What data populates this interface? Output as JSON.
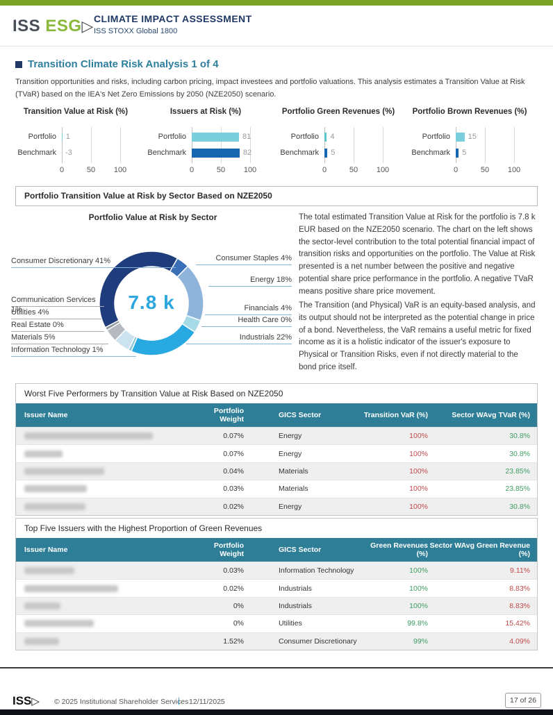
{
  "brand": {
    "topbar_color": "#7ba428",
    "bottombar_color": "#101018",
    "logo_iss": "ISS",
    "logo_esg": "ESG",
    "logo_arrow": "▷",
    "title": "CLIMATE IMPACT ASSESSMENT",
    "subtitle": "ISS STOXX Global 1800"
  },
  "section": {
    "title": "Transition Climate Risk Analysis 1 of 4",
    "intro": "Transition opportunities and risks, including carbon pricing, impact investees and portfolio valuations. This analysis estimates a Transition Value at Risk (TVaR) based on the IEA's Net Zero Emissions by 2050 (NZE2050) scenario."
  },
  "chart_data": [
    {
      "type": "bar",
      "title": "Transition Value at Risk (%)",
      "categories": [
        "Portfolio",
        "Benchmark"
      ],
      "values": [
        1,
        -3
      ],
      "colors": [
        "#7bcedc",
        "#1565af"
      ],
      "xlim": [
        0,
        100
      ],
      "ticks": [
        0,
        50,
        100
      ]
    },
    {
      "type": "bar",
      "title": "Issuers at Risk (%)",
      "categories": [
        "Portfolio",
        "Benchmark"
      ],
      "values": [
        81,
        82
      ],
      "colors": [
        "#7bcedc",
        "#1565af"
      ],
      "xlim": [
        0,
        100
      ],
      "ticks": [
        0,
        50,
        100
      ]
    },
    {
      "type": "bar",
      "title": "Portfolio Green Revenues (%)",
      "categories": [
        "Portfolio",
        "Benchmark"
      ],
      "values": [
        4,
        5
      ],
      "colors": [
        "#5fc4c8",
        "#1565af"
      ],
      "xlim": [
        0,
        100
      ],
      "ticks": [
        0,
        50,
        100
      ]
    },
    {
      "type": "bar",
      "title": "Portfolio Brown Revenues (%)",
      "categories": [
        "Portfolio",
        "Benchmark"
      ],
      "values": [
        15,
        5
      ],
      "colors": [
        "#7bcedc",
        "#1565af"
      ],
      "xlim": [
        0,
        100
      ],
      "ticks": [
        0,
        50,
        100
      ]
    },
    {
      "type": "donut",
      "title": "Portfolio Value at Risk by Sector",
      "center_label": "7.8 k",
      "start_angle": 30,
      "segments": [
        {
          "label": "Consumer Staples",
          "value": 4,
          "color": "#3a70b7"
        },
        {
          "label": "Energy",
          "value": 18,
          "color": "#8fb4dc"
        },
        {
          "label": "Financials",
          "value": 4,
          "color": "#a6dae7"
        },
        {
          "label": "Health Care",
          "value": 0,
          "color": "#a6dae7"
        },
        {
          "label": "Industrials",
          "value": 22,
          "color": "#29a9e1"
        },
        {
          "label": "Information Technology",
          "value": 1,
          "color": "#8fcadc"
        },
        {
          "label": "Materials",
          "value": 5,
          "color": "#cbe3ef"
        },
        {
          "label": "Real Estate",
          "value": 0,
          "color": "#b4bac0"
        },
        {
          "label": "Utilities",
          "value": 4,
          "color": "#b4bac0"
        },
        {
          "label": "Communication Services",
          "value": 1,
          "color": "#8f969d"
        },
        {
          "label": "Consumer Discretionary",
          "value": 41,
          "color": "#1f3d7c"
        }
      ]
    }
  ],
  "sector_section": {
    "box_title": "Portfolio Transition Value at Risk by Sector Based on NZE2050",
    "paragraph1": "The total estimated Transition Value at Risk for the portfolio is 7.8 k EUR based on the NZE2050 scenario. The chart on the left shows the sector-level contribution to the total potential financial impact of transition risks and opportunities on the portfolio. The Value at Risk presented is a net number between the positive and negative potential share price performance in the portfolio. A negative TVaR means positive share price movement.",
    "paragraph2": "The Transition (and Physical) VaR is an equity-based analysis, and its output should not be interpreted as the potential change in price of a bond. Nevertheless, the VaR remains a useful metric for fixed income as it is a holistic indicator of the issuer's exposure to Physical or Transition Risks, even if not directly material to the bond price itself."
  },
  "tables": [
    {
      "title": "Worst Five Performers by Transition Value at Risk Based on NZE2050",
      "header_bg": "#2e7e97",
      "headers": [
        "Issuer Name",
        "Portfolio Weight",
        "GICS Sector",
        "Transition VaR (%)",
        "Sector WAvg TVaR (%)"
      ],
      "column_colors": [
        null,
        null,
        null,
        "#c14a4a",
        "#3e9e63"
      ],
      "rows": [
        {
          "issuer_blur_width": 185,
          "cells": [
            "0.07%",
            "Energy",
            "100%",
            "30.8%"
          ]
        },
        {
          "issuer_blur_width": 55,
          "cells": [
            "0.07%",
            "Energy",
            "100%",
            "30.8%"
          ]
        },
        {
          "issuer_blur_width": 115,
          "cells": [
            "0.04%",
            "Materials",
            "100%",
            "23.85%"
          ]
        },
        {
          "issuer_blur_width": 90,
          "cells": [
            "0.03%",
            "Materials",
            "100%",
            "23.85%"
          ]
        },
        {
          "issuer_blur_width": 88,
          "cells": [
            "0.02%",
            "Energy",
            "100%",
            "30.8%"
          ]
        }
      ]
    },
    {
      "title": "Top Five Issuers with the Highest Proportion of Green Revenues",
      "header_bg": "#2e7e97",
      "headers": [
        "Issuer Name",
        "Portfolio Weight",
        "GICS Sector",
        "Green Revenues (%)",
        "Sector WAvg Green Revenue (%)"
      ],
      "column_colors": [
        null,
        null,
        null,
        "#3e9e63",
        "#c14a4a"
      ],
      "rows": [
        {
          "issuer_blur_width": 72,
          "cells": [
            "0.03%",
            "Information Technology",
            "100%",
            "9.11%"
          ]
        },
        {
          "issuer_blur_width": 135,
          "cells": [
            "0.02%",
            "Industrials",
            "100%",
            "8.83%"
          ]
        },
        {
          "issuer_blur_width": 52,
          "cells": [
            "0%",
            "Industrials",
            "100%",
            "8.83%"
          ]
        },
        {
          "issuer_blur_width": 100,
          "cells": [
            "0%",
            "Utilities",
            "99.8%",
            "15.42%"
          ]
        },
        {
          "issuer_blur_width": 50,
          "cells": [
            "1.52%",
            "Consumer Discretionary",
            "99%",
            "4.09%"
          ]
        }
      ]
    }
  ],
  "footer": {
    "logo": "ISS",
    "logo_arrow": "▷",
    "copyright": "© 2025 Institutional Shareholder Services",
    "separator": "|",
    "date": "12/11/2025",
    "page": "17 of 26"
  }
}
